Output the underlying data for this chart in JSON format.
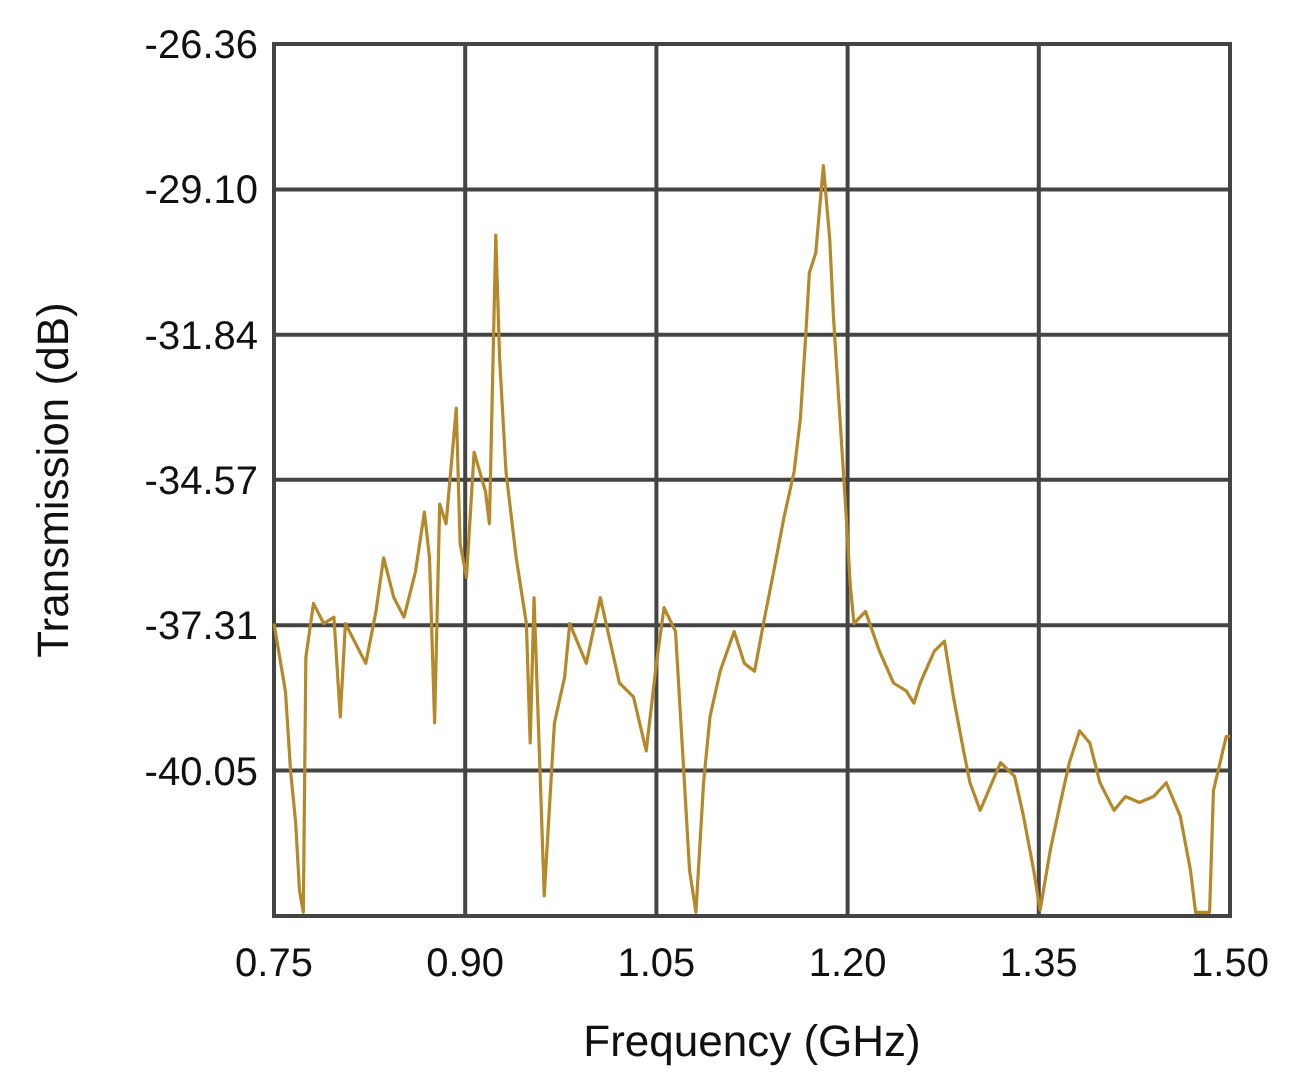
{
  "chart_data": {
    "type": "line",
    "xlabel": "Frequency (GHz)",
    "ylabel": "Transmission (dB)",
    "xlim": [
      0.75,
      1.5
    ],
    "xticks": [
      0.75,
      {
        "value": 0.9,
        "label": "0.90"
      },
      1.05,
      {
        "value": 1.2,
        "label": "1.20"
      },
      1.35,
      {
        "value": 1.5,
        "label": "1.50"
      }
    ],
    "ylim": [
      -42.79,
      -26.36
    ],
    "yticks": [
      -26.36,
      {
        "value": -29.1,
        "label": "-29.10"
      },
      -31.84,
      -34.57,
      -37.31,
      -40.05
    ],
    "grid": true,
    "marker": "none",
    "line_style": "solid",
    "series": [
      {
        "color": "#b5892a",
        "x": [
          0.75,
          0.759,
          0.763,
          0.767,
          0.77,
          0.773,
          0.775,
          0.781,
          0.789,
          0.797,
          0.802,
          0.806,
          0.822,
          0.83,
          0.836,
          0.844,
          0.852,
          0.861,
          0.868,
          0.872,
          0.876,
          0.88,
          0.885,
          0.893,
          0.896,
          0.901,
          0.907,
          0.916,
          0.919,
          0.924,
          0.927,
          0.932,
          0.94,
          0.948,
          0.951,
          0.954,
          0.959,
          0.962,
          0.97,
          0.978,
          0.982,
          0.995,
          1.006,
          1.021,
          1.032,
          1.042,
          1.05,
          1.056,
          1.065,
          1.072,
          1.076,
          1.081,
          1.087,
          1.092,
          1.1,
          1.111,
          1.119,
          1.127,
          1.134,
          1.142,
          1.15,
          1.158,
          1.163,
          1.167,
          1.17,
          1.175,
          1.181,
          1.186,
          1.189,
          1.194,
          1.199,
          1.202,
          1.205,
          1.214,
          1.225,
          1.236,
          1.246,
          1.252,
          1.257,
          1.268,
          1.276,
          1.283,
          1.291,
          1.296,
          1.304,
          1.32,
          1.331,
          1.338,
          1.346,
          1.351,
          1.359,
          1.367,
          1.374,
          1.382,
          1.39,
          1.398,
          1.409,
          1.418,
          1.429,
          1.44,
          1.45,
          1.461,
          1.469,
          1.473,
          1.484,
          1.487,
          1.497,
          1.5
        ],
        "values": [
          -37.28,
          -38.56,
          -40.06,
          -41.03,
          -42.31,
          -42.72,
          -37.91,
          -36.9,
          -37.28,
          -37.16,
          -39.04,
          -37.28,
          -38.03,
          -37.05,
          -36.04,
          -36.79,
          -37.16,
          -36.3,
          -35.18,
          -36.04,
          -39.15,
          -35.03,
          -35.4,
          -33.22,
          -35.77,
          -36.41,
          -34.05,
          -34.8,
          -35.4,
          -29.96,
          -32.29,
          -34.42,
          -36.04,
          -37.28,
          -39.53,
          -36.79,
          -40.28,
          -42.41,
          -39.15,
          -38.29,
          -37.28,
          -38.03,
          -36.79,
          -38.4,
          -38.66,
          -39.68,
          -38.03,
          -36.98,
          -37.43,
          -40.28,
          -41.93,
          -42.72,
          -40.28,
          -39.04,
          -38.18,
          -37.43,
          -38.03,
          -38.18,
          -37.28,
          -36.3,
          -35.29,
          -34.42,
          -33.41,
          -31.91,
          -30.67,
          -30.3,
          -28.65,
          -30.04,
          -31.54,
          -33.41,
          -35.29,
          -36.53,
          -37.28,
          -37.05,
          -37.8,
          -38.4,
          -38.55,
          -38.78,
          -38.4,
          -37.8,
          -37.61,
          -38.66,
          -39.68,
          -40.28,
          -40.8,
          -39.9,
          -40.16,
          -40.91,
          -41.93,
          -42.68,
          -41.55,
          -40.65,
          -39.9,
          -39.3,
          -39.53,
          -40.28,
          -40.8,
          -40.54,
          -40.65,
          -40.54,
          -40.28,
          -40.91,
          -41.93,
          -42.72,
          -42.72,
          -40.43,
          -39.41,
          -39.41
        ]
      }
    ]
  }
}
